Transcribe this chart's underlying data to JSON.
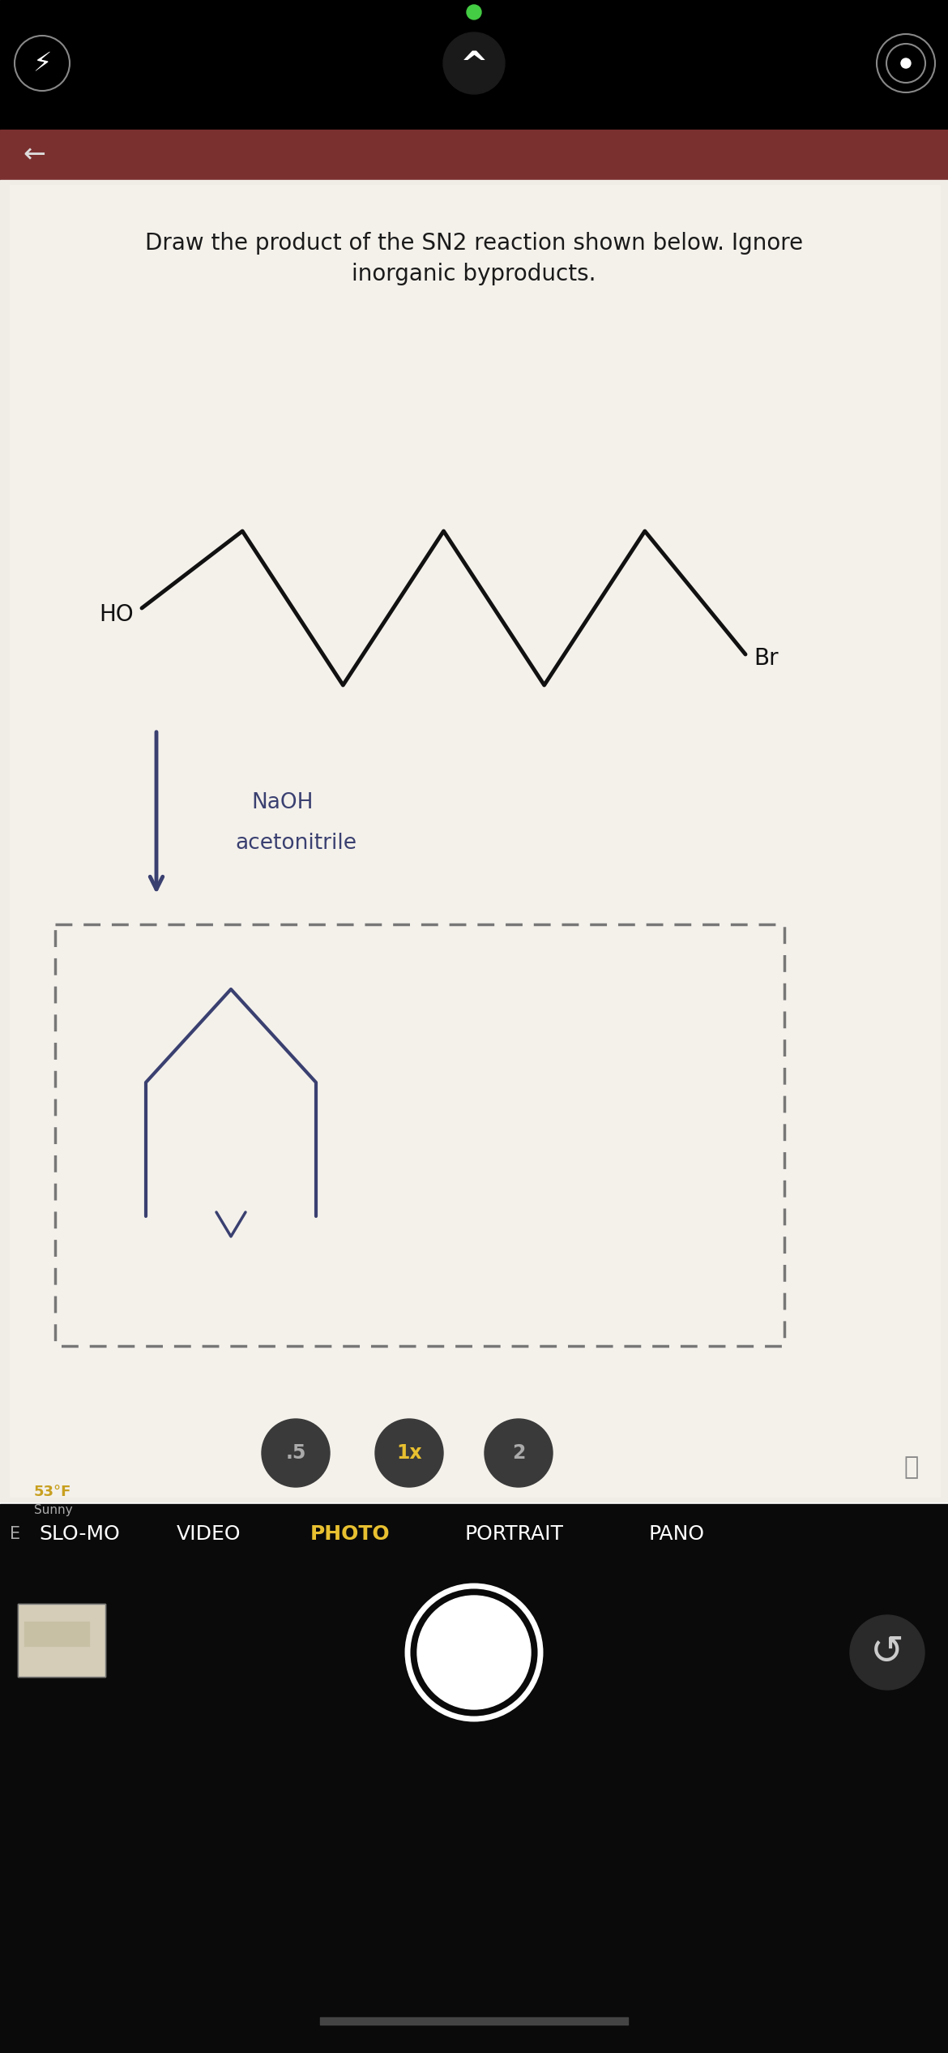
{
  "bg_top": "#000000",
  "bg_content": "#ece9e2",
  "bg_header": "#7b3030",
  "title_line1": "Draw the product of the SN2 reaction shown below. Ignore",
  "title_line2": "inorganic byproducts.",
  "title_fontsize": 20,
  "title_color": "#1a1a1a",
  "molecule_color": "#111111",
  "ho_label": "HO",
  "br_label": "Br",
  "reagent1": "NaOH",
  "reagent2": "acetonitrile",
  "reagent_color": "#3a4070",
  "arrow_color": "#3a4070",
  "dashed_box_color": "#777777",
  "product_color": "#3a4070",
  "camera_text_color": "#ffffff",
  "photo_text_color": "#e8c030",
  "zoom_active_color": "#e8c030",
  "zoom_inactive_color": "#aaaaaa",
  "zoom_bg": "#3a3a3a",
  "temp_label": "53°F",
  "temp_color": "#c8a020",
  "temp_sub": "Sunny",
  "bottom_bar_labels": [
    "SLO-MO",
    "VIDEO",
    "PHOTO",
    "PORTRAIT",
    "PANO"
  ],
  "shutter_color": "#ffffff",
  "back_arrow": "←",
  "camera_icon_color": "#ffffff",
  "green_dot_color": "#44cc44",
  "content_bg": "#f0ede6",
  "white_panel_bg": "#f4f1eb"
}
